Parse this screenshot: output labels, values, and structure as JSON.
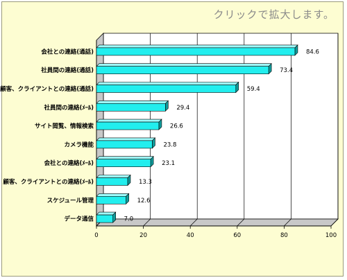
{
  "hint": "クリックで拡大します。",
  "colors": {
    "bar_front": "#22eeee",
    "bar_top": "#9ffcfc",
    "bar_side": "#119c9c",
    "panel": "#fdfdd2",
    "plot": "#ffffff",
    "wall": "#c8c8c8"
  },
  "chart_data": {
    "type": "bar",
    "orientation": "horizontal",
    "categories": [
      "会社との連絡(通話)",
      "社員間の連絡(通話)",
      "顧客、クライアントとの連絡(通話)",
      "社員間の連絡(ﾒｰﾙ)",
      "サイト閲覧、情報検索",
      "カメラ機能",
      "会社との連絡(ﾒｰﾙ)",
      "顧客、クライアントとの連絡(ﾒｰﾙ)",
      "スケジュール管理",
      "データ通信"
    ],
    "values": [
      84.6,
      73.4,
      59.4,
      29.4,
      26.6,
      23.8,
      23.1,
      13.3,
      12.6,
      7.0
    ],
    "value_labels": [
      "84.6",
      "73.4",
      "59.4",
      "29.4",
      "26.6",
      "23.8",
      "23.1",
      "13.3",
      "12.6",
      "7.0"
    ],
    "xlim": [
      0,
      100
    ],
    "xticks": [
      "0",
      "20",
      "40",
      "60",
      "80",
      "100"
    ],
    "grid": true,
    "legend": "none"
  }
}
